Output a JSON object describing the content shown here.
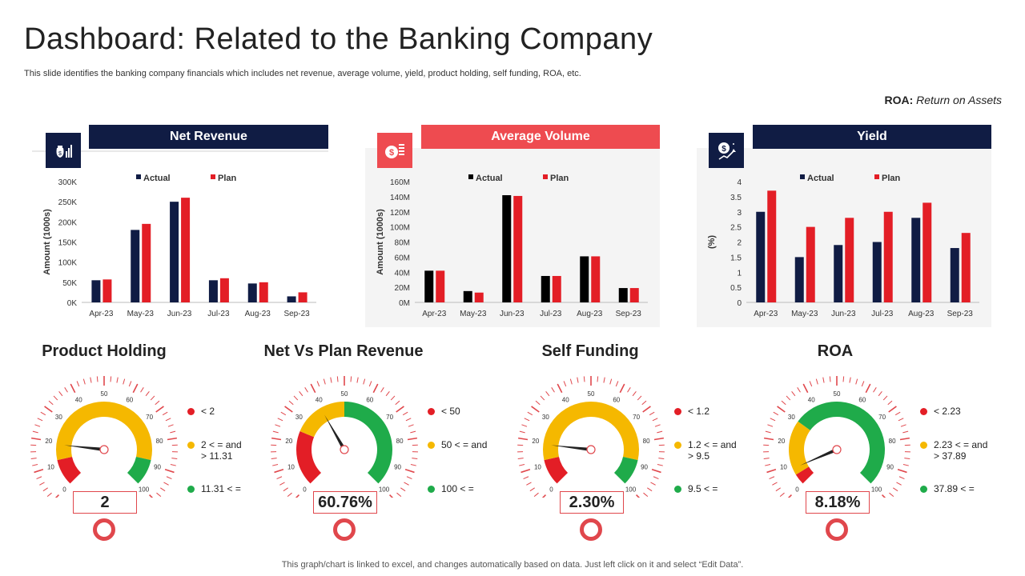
{
  "header": {
    "title": "Dashboard: Related to the Banking Company",
    "subtitle": "This slide identifies the banking company financials which includes net revenue, average volume, yield, product holding, self funding, ROA, etc.",
    "roa_abbr": "ROA:",
    "roa_full": "Return on Assets"
  },
  "colors": {
    "navy": "#101c44",
    "red": "#e31e26",
    "black": "#000000",
    "header_red": "#ee4b50",
    "gauge_red": "#e31e26",
    "gauge_yellow": "#f5b800",
    "gauge_green": "#1fab4a"
  },
  "panels": [
    {
      "header": "Net Revenue",
      "icon": "money-bag-chart-icon"
    },
    {
      "header": "Average Volume",
      "icon": "dollar-coins-icon"
    },
    {
      "header": "Yield",
      "icon": "dollar-growth-icon"
    }
  ],
  "chart_data": [
    {
      "type": "bar",
      "title": "Net Revenue",
      "categories": [
        "Apr-23",
        "May-23",
        "Jun-23",
        "Jul-23",
        "Aug-23",
        "Sep-23"
      ],
      "series": [
        {
          "name": "Actual",
          "values": [
            55,
            180,
            250,
            55,
            47,
            15
          ]
        },
        {
          "name": "Plan",
          "values": [
            57,
            195,
            260,
            60,
            50,
            25
          ]
        }
      ],
      "ylabel": "Amount (1000s)",
      "ylim": [
        0,
        300
      ],
      "yticks": [
        0,
        50,
        100,
        150,
        200,
        250,
        300
      ],
      "ytick_labels": [
        "0K",
        "50K",
        "100K",
        "150K",
        "200K",
        "250K",
        "300K"
      ],
      "legend": "top-center",
      "grid": false
    },
    {
      "type": "bar",
      "title": "Average Volume",
      "categories": [
        "Apr-23",
        "May-23",
        "Jun-23",
        "Jul-23",
        "Aug-23",
        "Sep-23"
      ],
      "series": [
        {
          "name": "Actual",
          "values": [
            42,
            15,
            142,
            35,
            61,
            19
          ]
        },
        {
          "name": "Plan",
          "values": [
            42,
            13,
            141,
            35,
            61,
            19
          ]
        }
      ],
      "ylabel": "Amount (1000s)",
      "ylim": [
        0,
        160
      ],
      "yticks": [
        0,
        20,
        40,
        60,
        80,
        100,
        120,
        140,
        160
      ],
      "ytick_labels": [
        "0M",
        "20M",
        "40M",
        "60M",
        "80M",
        "100M",
        "120M",
        "140M",
        "160M"
      ],
      "legend": "top-center",
      "grid": false
    },
    {
      "type": "bar",
      "title": "Yield",
      "categories": [
        "Apr-23",
        "May-23",
        "Jun-23",
        "Jul-23",
        "Aug-23",
        "Sep-23"
      ],
      "series": [
        {
          "name": "Actual",
          "values": [
            3.0,
            1.5,
            1.9,
            2.0,
            2.8,
            1.8
          ]
        },
        {
          "name": "Plan",
          "values": [
            3.7,
            2.5,
            2.8,
            3.0,
            3.3,
            2.3
          ]
        }
      ],
      "ylabel": "(%)",
      "ylim": [
        0,
        4
      ],
      "yticks": [
        0,
        0.5,
        1,
        1.5,
        2,
        2.5,
        3,
        3.5,
        4
      ],
      "ytick_labels": [
        "0",
        "0.5",
        "1",
        "1.5",
        "2",
        "2.5",
        "3",
        "3.5",
        "4"
      ],
      "legend": "top-center",
      "grid": false
    }
  ],
  "gauges": [
    {
      "title": "Product Holding",
      "value_label": "2",
      "needle": 19,
      "bands": [
        [
          0,
          12,
          "red"
        ],
        [
          12,
          88,
          "yellow"
        ],
        [
          88,
          100,
          "green"
        ]
      ],
      "legend": [
        {
          "color": "red",
          "text": "< 2"
        },
        {
          "color": "yellow",
          "text": "2 < = and\n> 11.31"
        },
        {
          "color": "green",
          "text": "11.31 < ="
        }
      ]
    },
    {
      "title": "Net Vs Plan Revenue",
      "value_label": "60.76%",
      "needle": 39,
      "bands": [
        [
          0,
          25,
          "red"
        ],
        [
          25,
          50,
          "yellow"
        ],
        [
          50,
          100,
          "green"
        ]
      ],
      "legend": [
        {
          "color": "red",
          "text": "< 50"
        },
        {
          "color": "yellow",
          "text": "50 < = and"
        },
        {
          "color": "green",
          "text": "100 < ="
        }
      ]
    },
    {
      "title": "Self Funding",
      "value_label": "2.30%",
      "needle": 19,
      "bands": [
        [
          0,
          12,
          "red"
        ],
        [
          12,
          88,
          "yellow"
        ],
        [
          88,
          100,
          "green"
        ]
      ],
      "legend": [
        {
          "color": "red",
          "text": "< 1.2"
        },
        {
          "color": "yellow",
          "text": "1.2 < = and\n> 9.5"
        },
        {
          "color": "green",
          "text": "9.5 < ="
        }
      ]
    },
    {
      "title": "ROA",
      "value_label": "8.18%",
      "needle": 8,
      "bands": [
        [
          0,
          5,
          "red"
        ],
        [
          5,
          30,
          "yellow"
        ],
        [
          30,
          100,
          "green"
        ]
      ],
      "legend": [
        {
          "color": "red",
          "text": "< 2.23"
        },
        {
          "color": "yellow",
          "text": "2.23 < = and\n> 37.89"
        },
        {
          "color": "green",
          "text": "37.89 < ="
        }
      ]
    }
  ],
  "gauge_scale": [
    "0",
    "10",
    "20",
    "30",
    "40",
    "50",
    "60",
    "70",
    "80",
    "90",
    "100"
  ],
  "footer": "This graph/chart is linked to excel,  and changes automatically based on data. Just left click on it and select “Edit Data”."
}
